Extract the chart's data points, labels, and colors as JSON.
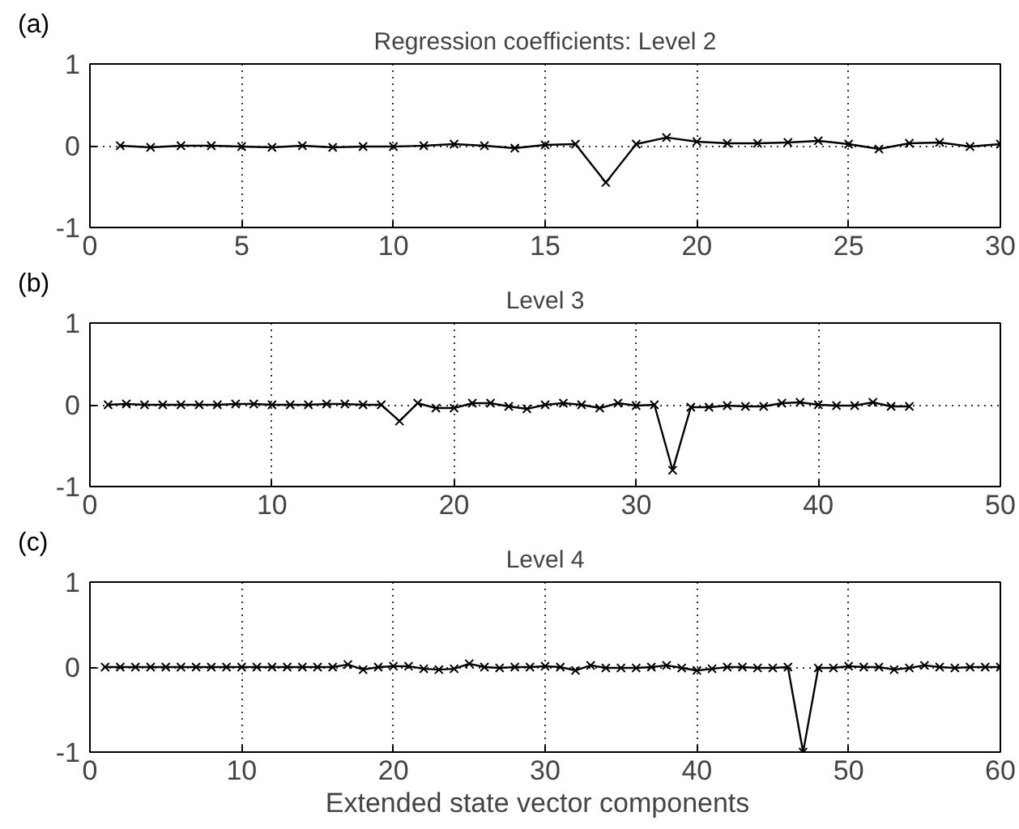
{
  "chart_data": [
    {
      "type": "line",
      "title": "Regression coefficients: Level 2",
      "annotations": [
        "(a)"
      ],
      "marker": "cross",
      "line_style": "solid",
      "grid": true,
      "xlim": [
        0,
        30
      ],
      "xticks": [
        0,
        5,
        10,
        15,
        20,
        25,
        30
      ],
      "ylim": [
        -1,
        1
      ],
      "yticks": [
        -1,
        0,
        1
      ],
      "x": [
        1,
        2,
        3,
        4,
        5,
        6,
        7,
        8,
        9,
        10,
        11,
        12,
        13,
        14,
        15,
        16,
        17,
        18,
        19,
        20,
        21,
        22,
        23,
        24,
        25,
        26,
        27,
        28,
        29,
        30
      ],
      "series": [
        {
          "color": "#000000",
          "values": [
            0,
            -0.02,
            0,
            0,
            -0.01,
            -0.02,
            0,
            -0.02,
            -0.01,
            -0.01,
            0,
            0.02,
            0,
            -0.03,
            0.01,
            0.02,
            -0.45,
            0.02,
            0.1,
            0.05,
            0.03,
            0.03,
            0.04,
            0.06,
            0.02,
            -0.04,
            0.03,
            0.04,
            -0.01,
            0.02
          ]
        }
      ]
    },
    {
      "type": "line",
      "title": "Level 3",
      "annotations": [
        "(b)"
      ],
      "marker": "cross",
      "line_style": "solid",
      "grid": true,
      "xlim": [
        0,
        50
      ],
      "xticks": [
        0,
        10,
        20,
        30,
        40,
        50
      ],
      "ylim": [
        -1,
        1
      ],
      "yticks": [
        -1,
        0,
        1
      ],
      "x": [
        1,
        2,
        3,
        4,
        5,
        6,
        7,
        8,
        9,
        10,
        11,
        12,
        13,
        14,
        15,
        16,
        17,
        18,
        19,
        20,
        21,
        22,
        23,
        24,
        25,
        26,
        27,
        28,
        29,
        30,
        31,
        32,
        33,
        34,
        35,
        36,
        37,
        38,
        39,
        40,
        41,
        42,
        43,
        44,
        45
      ],
      "series": [
        {
          "color": "#000000",
          "values": [
            0,
            0.01,
            0,
            0,
            0,
            0,
            0,
            0.01,
            0.01,
            0,
            0,
            0,
            0.01,
            0.01,
            0,
            0,
            -0.2,
            0.02,
            -0.04,
            -0.04,
            0.02,
            0.02,
            -0.02,
            -0.05,
            0,
            0.02,
            0,
            -0.04,
            0.02,
            -0.01,
            0,
            -0.8,
            -0.03,
            -0.03,
            -0.01,
            -0.02,
            -0.02,
            0.02,
            0.03,
            0,
            -0.01,
            -0.01,
            0.03,
            -0.02,
            -0.02
          ]
        }
      ]
    },
    {
      "type": "line",
      "title": "Level 4",
      "xlabel": "Extended state   vector components",
      "annotations": [
        "(c)"
      ],
      "marker": "cross",
      "line_style": "solid",
      "grid": true,
      "xlim": [
        0,
        60
      ],
      "xticks": [
        0,
        10,
        20,
        30,
        40,
        50,
        60
      ],
      "ylim": [
        -1,
        1
      ],
      "yticks": [
        -1,
        0,
        1
      ],
      "x": [
        1,
        2,
        3,
        4,
        5,
        6,
        7,
        8,
        9,
        10,
        11,
        12,
        13,
        14,
        15,
        16,
        17,
        18,
        19,
        20,
        21,
        22,
        23,
        24,
        25,
        26,
        27,
        28,
        29,
        30,
        31,
        32,
        33,
        34,
        35,
        36,
        37,
        38,
        39,
        40,
        41,
        42,
        43,
        44,
        45,
        46,
        47,
        48,
        49,
        50,
        51,
        52,
        53,
        54,
        55,
        56,
        57,
        58,
        59,
        60
      ],
      "series": [
        {
          "color": "#000000",
          "values": [
            0,
            0,
            0,
            0,
            0,
            0,
            0,
            0,
            0,
            0,
            0,
            0,
            0,
            0,
            0,
            0,
            0.03,
            -0.03,
            0,
            0.01,
            0.01,
            -0.02,
            -0.03,
            -0.02,
            0.04,
            0,
            -0.01,
            0,
            0,
            0.01,
            0,
            -0.04,
            0.02,
            -0.01,
            -0.01,
            -0.01,
            0,
            0.02,
            -0.01,
            -0.04,
            -0.02,
            0,
            0,
            -0.01,
            -0.01,
            0,
            -1,
            -0.01,
            -0.01,
            0.01,
            0,
            0,
            -0.03,
            -0.01,
            0.02,
            0,
            -0.01,
            0,
            0,
            0
          ]
        }
      ]
    }
  ]
}
